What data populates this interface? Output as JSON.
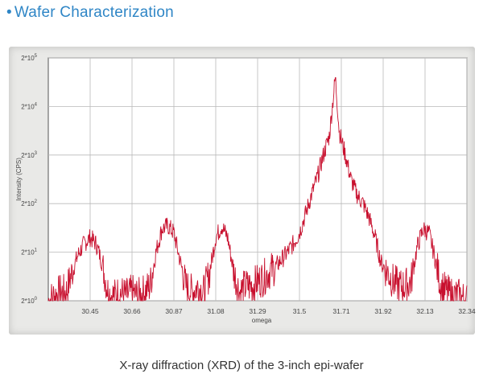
{
  "slide": {
    "bullet": "•",
    "title": "Wafer Characterization",
    "caption": "X-ray diffraction (XRD) of the 3-inch epi-wafer"
  },
  "chart_data": {
    "type": "line",
    "title": "",
    "xlabel": "omega",
    "ylabel": "Intensity (CPS)",
    "x_ticks": [
      "30.45",
      "30.66",
      "30.87",
      "31.08",
      "31.29",
      "31.5",
      "31.71",
      "31.92",
      "32.13",
      "32.34"
    ],
    "y_ticks": [
      {
        "base": "2*10",
        "exp": "0"
      },
      {
        "base": "2*10",
        "exp": "1"
      },
      {
        "base": "2*10",
        "exp": "2"
      },
      {
        "base": "2*10",
        "exp": "3"
      },
      {
        "base": "2*10",
        "exp": "4"
      },
      {
        "base": "2*10",
        "exp": "5"
      }
    ],
    "xlim": [
      30.24,
      32.34
    ],
    "ylim": [
      2,
      200000
    ],
    "y_scale": "log",
    "grid": true,
    "line_color": "#c8102e",
    "series": [
      {
        "values_note": "",
        "points": [
          [
            30.24,
            2
          ],
          [
            30.27,
            2.5
          ],
          [
            30.3,
            3
          ],
          [
            30.33,
            3
          ],
          [
            30.36,
            8
          ],
          [
            30.39,
            18
          ],
          [
            30.42,
            30
          ],
          [
            30.45,
            40
          ],
          [
            30.48,
            30
          ],
          [
            30.51,
            12
          ],
          [
            30.54,
            3
          ],
          [
            30.57,
            2.5
          ],
          [
            30.6,
            3
          ],
          [
            30.63,
            2.5
          ],
          [
            30.66,
            3
          ],
          [
            30.69,
            2.5
          ],
          [
            30.72,
            3
          ],
          [
            30.75,
            4
          ],
          [
            30.78,
            20
          ],
          [
            30.81,
            60
          ],
          [
            30.84,
            70
          ],
          [
            30.87,
            50
          ],
          [
            30.9,
            14
          ],
          [
            30.93,
            4
          ],
          [
            30.96,
            3
          ],
          [
            30.99,
            4
          ],
          [
            31.02,
            3
          ],
          [
            31.05,
            8
          ],
          [
            31.08,
            40
          ],
          [
            31.11,
            70
          ],
          [
            31.14,
            40
          ],
          [
            31.17,
            8
          ],
          [
            31.2,
            3
          ],
          [
            31.23,
            4
          ],
          [
            31.26,
            4
          ],
          [
            31.29,
            5
          ],
          [
            31.32,
            6
          ],
          [
            31.35,
            8
          ],
          [
            31.38,
            10
          ],
          [
            31.41,
            14
          ],
          [
            31.44,
            20
          ],
          [
            31.47,
            30
          ],
          [
            31.5,
            50
          ],
          [
            31.53,
            120
          ],
          [
            31.56,
            300
          ],
          [
            31.59,
            700
          ],
          [
            31.62,
            2000
          ],
          [
            31.65,
            5000
          ],
          [
            31.68,
            80000
          ],
          [
            31.7,
            6000
          ],
          [
            31.73,
            2000
          ],
          [
            31.76,
            600
          ],
          [
            31.79,
            300
          ],
          [
            31.82,
            200
          ],
          [
            31.85,
            100
          ],
          [
            31.88,
            40
          ],
          [
            31.91,
            12
          ],
          [
            31.94,
            8
          ],
          [
            31.97,
            5
          ],
          [
            32.0,
            4
          ],
          [
            32.03,
            4
          ],
          [
            32.06,
            5
          ],
          [
            32.09,
            25
          ],
          [
            32.12,
            60
          ],
          [
            32.15,
            50
          ],
          [
            32.18,
            15
          ],
          [
            32.21,
            4
          ],
          [
            32.24,
            3
          ],
          [
            32.27,
            2.5
          ],
          [
            32.3,
            2.5
          ],
          [
            32.34,
            2
          ]
        ]
      }
    ]
  }
}
